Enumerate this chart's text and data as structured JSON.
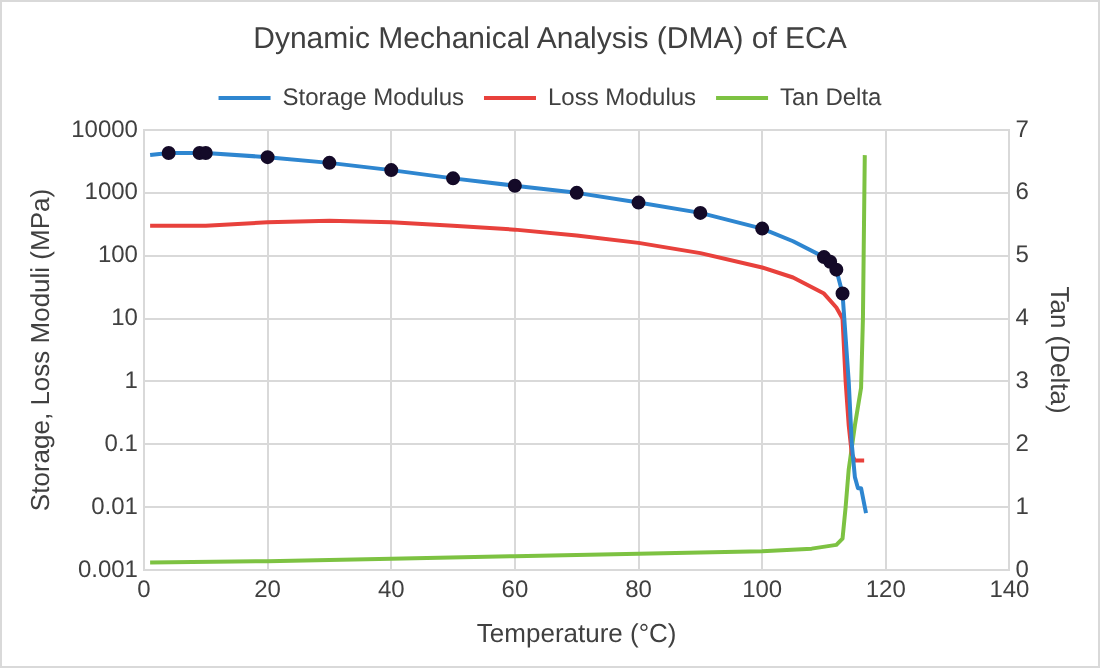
{
  "chart_data": {
    "type": "line",
    "title": "Dynamic Mechanical Analysis (DMA) of ECA",
    "xlabel": "Temperature (°C)",
    "ylabel": "Storage, Loss Moduli (MPa)",
    "y2label": "Tan (Delta)",
    "log": "y",
    "grid": true,
    "legend": "top",
    "marker": "none",
    "xlim": [
      0,
      140
    ],
    "xticks": [
      0,
      20,
      40,
      60,
      80,
      100,
      120,
      140
    ],
    "ylim": [
      0.001,
      10000
    ],
    "yticks": [
      0.001,
      0.01,
      0.1,
      1,
      10,
      100,
      1000,
      10000
    ],
    "y2lim": [
      0,
      7
    ],
    "y2ticks": [
      0,
      1,
      2,
      3,
      4,
      5,
      6,
      7
    ],
    "series": [
      {
        "name": "Storage Modulus",
        "color": "#2e86d0",
        "x": [
          1,
          4,
          9,
          10,
          20,
          30,
          40,
          50,
          60,
          70,
          80,
          90,
          100,
          105,
          110,
          111,
          112,
          113,
          114,
          114.5,
          115,
          115.5,
          116,
          116.8
        ],
        "values": [
          4000,
          4300,
          4300,
          4300,
          3700,
          3000,
          2300,
          1700,
          1300,
          1000,
          700,
          480,
          270,
          170,
          95,
          80,
          60,
          25,
          1,
          0.1,
          0.03,
          0.02,
          0.02,
          0.008
        ]
      },
      {
        "name": "Loss Modulus",
        "color": "#e8413c",
        "x": [
          1,
          10,
          20,
          30,
          40,
          50,
          60,
          70,
          80,
          90,
          100,
          105,
          110,
          112,
          113,
          113.5,
          114,
          114.5,
          115,
          116,
          116.5
        ],
        "values": [
          300,
          300,
          340,
          360,
          340,
          300,
          260,
          210,
          160,
          110,
          65,
          45,
          25,
          15,
          10,
          1,
          0.2,
          0.07,
          0.055,
          0.055,
          0.055
        ]
      },
      {
        "name": "Tan Delta",
        "color": "#7dc242",
        "axis": "y2",
        "x": [
          1,
          20,
          40,
          60,
          80,
          100,
          108,
          112,
          113,
          113.5,
          114,
          115,
          116,
          116.3,
          116.6
        ],
        "values": [
          0.12,
          0.14,
          0.18,
          0.22,
          0.26,
          0.3,
          0.34,
          0.4,
          0.5,
          1.0,
          1.6,
          2.3,
          2.9,
          4,
          6.6
        ]
      },
      {
        "type": "scatter",
        "color": "#140a28",
        "marker": "circle",
        "x": [
          4,
          9,
          10,
          20,
          30,
          40,
          50,
          60,
          70,
          80,
          90,
          100,
          110,
          111,
          112,
          113
        ],
        "values": [
          4300,
          4300,
          4300,
          3700,
          3000,
          2300,
          1700,
          1300,
          1000,
          700,
          480,
          270,
          95,
          80,
          60,
          25
        ]
      }
    ]
  }
}
